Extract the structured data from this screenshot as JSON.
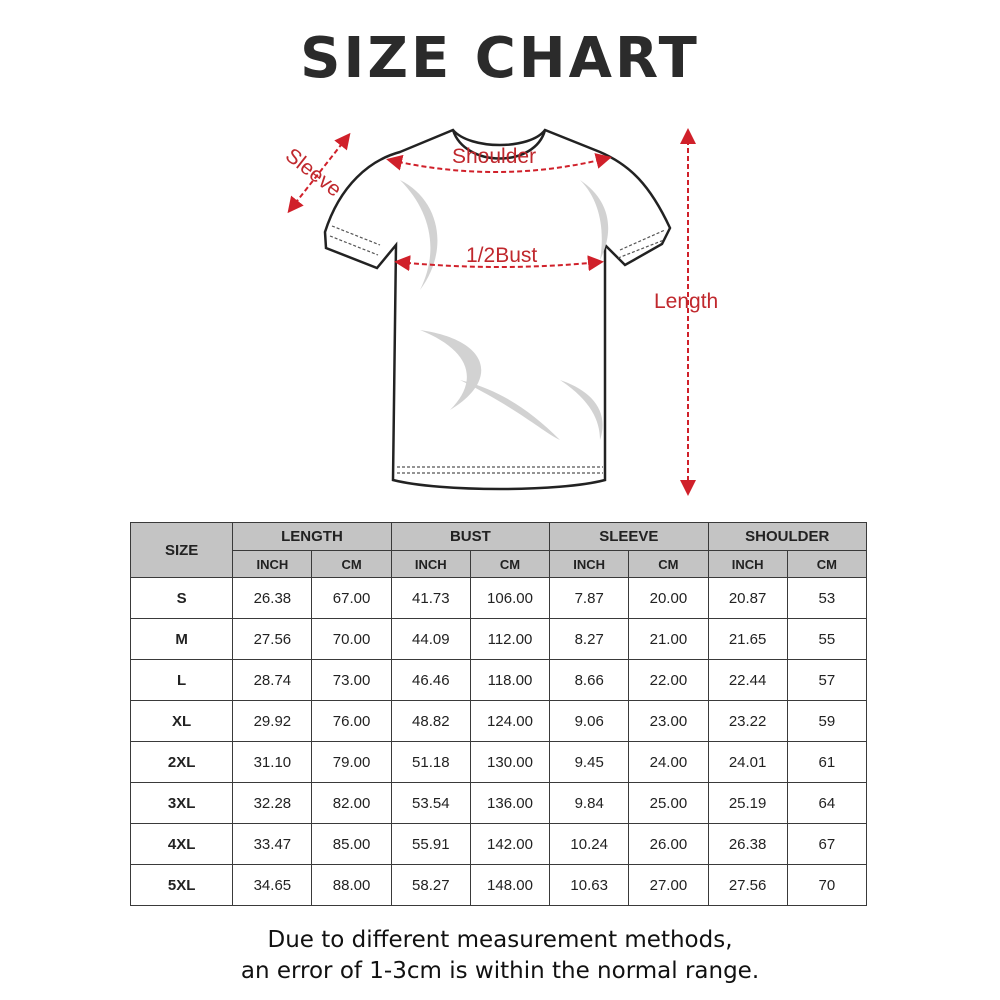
{
  "title": "SIZE CHART",
  "diagram": {
    "labels": {
      "sleeve": "Sleeve",
      "shoulder": "Shoulder",
      "bust": "1/2Bust",
      "length": "Length"
    },
    "arrow_color": "#d0202a"
  },
  "table": {
    "size_header": "SIZE",
    "groups": [
      "LENGTH",
      "BUST",
      "SLEEVE",
      "SHOULDER"
    ],
    "units": [
      "INCH",
      "CM",
      "INCH",
      "CM",
      "INCH",
      "CM",
      "INCH",
      "CM"
    ],
    "rows": [
      [
        "S",
        "26.38",
        "67.00",
        "41.73",
        "106.00",
        "7.87",
        "20.00",
        "20.87",
        "53"
      ],
      [
        "M",
        "27.56",
        "70.00",
        "44.09",
        "112.00",
        "8.27",
        "21.00",
        "21.65",
        "55"
      ],
      [
        "L",
        "28.74",
        "73.00",
        "46.46",
        "118.00",
        "8.66",
        "22.00",
        "22.44",
        "57"
      ],
      [
        "XL",
        "29.92",
        "76.00",
        "48.82",
        "124.00",
        "9.06",
        "23.00",
        "23.22",
        "59"
      ],
      [
        "2XL",
        "31.10",
        "79.00",
        "51.18",
        "130.00",
        "9.45",
        "24.00",
        "24.01",
        "61"
      ],
      [
        "3XL",
        "32.28",
        "82.00",
        "53.54",
        "136.00",
        "9.84",
        "25.00",
        "25.19",
        "64"
      ],
      [
        "4XL",
        "33.47",
        "85.00",
        "55.91",
        "142.00",
        "10.24",
        "26.00",
        "26.38",
        "67"
      ],
      [
        "5XL",
        "34.65",
        "88.00",
        "58.27",
        "148.00",
        "10.63",
        "27.00",
        "27.56",
        "70"
      ]
    ],
    "header_bg": "#c4c4c4"
  },
  "note": {
    "line1": "Due to different measurement methods,",
    "line2": "an error of 1-3cm is within the normal range."
  }
}
